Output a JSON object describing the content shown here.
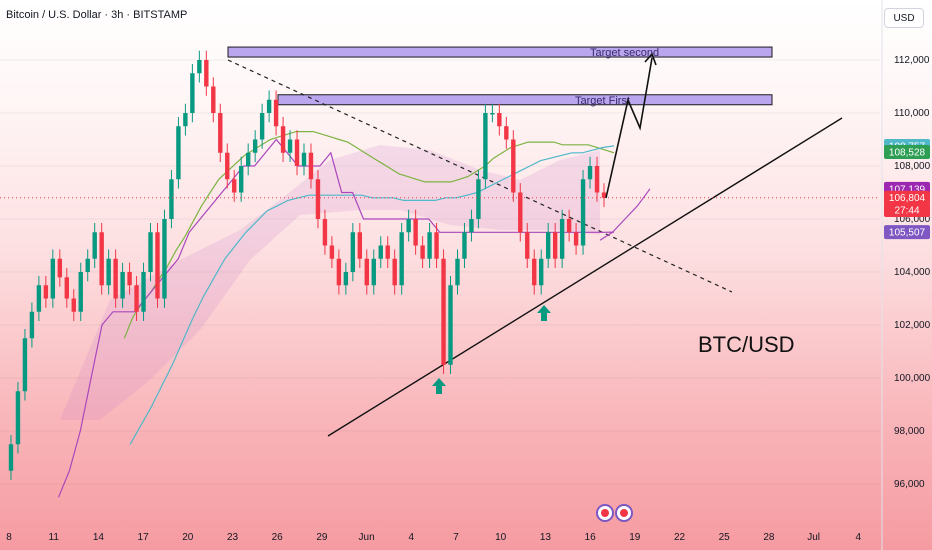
{
  "header": {
    "symbol_title": "Bitcoin / U.S. Dollar · 3h · BITSTAMP",
    "currency": "USD"
  },
  "chart_data": {
    "type": "line",
    "title": "",
    "symbol": "BTC/USD",
    "ylim": [
      94500,
      113500
    ],
    "y_ticks": [
      112000,
      110000,
      108000,
      106000,
      104000,
      102000,
      100000,
      98000,
      96000
    ],
    "y_tick_labels": [
      "112,000",
      "110,000",
      "108,000",
      "106,000",
      "104,000",
      "102,000",
      "100,000",
      "98,000",
      "96,000"
    ],
    "x_tick_labels": [
      "8",
      "11",
      "14",
      "17",
      "20",
      "23",
      "26",
      "29",
      "Jun",
      "4",
      "7",
      "10",
      "13",
      "16",
      "19",
      "22",
      "25",
      "28",
      "Jul",
      "4"
    ],
    "price_badges": [
      {
        "label": "108,757",
        "value": 108757,
        "color": "#4fb8c9"
      },
      {
        "label": "108,528",
        "value": 108528,
        "color": "#2e9e55"
      },
      {
        "label": "107,139",
        "value": 107139,
        "color": "#9c27b0"
      },
      {
        "label": "106,804",
        "value": 106804,
        "color": "#f23645"
      },
      {
        "label": "27:44",
        "value": 106350,
        "color": "#f23645"
      },
      {
        "label": "105,507",
        "value": 105507,
        "color": "#7e57c2"
      }
    ],
    "targets": [
      {
        "label": "Target second",
        "value": 112300
      },
      {
        "label": "Target First",
        "value": 110500
      }
    ],
    "series": [
      {
        "color": "#089981",
        "values": [
          96500,
          97500,
          99500,
          101500,
          102500,
          103500,
          103000,
          104500,
          103800,
          103000,
          102500,
          104000,
          104500,
          105500,
          103500,
          104500,
          103000,
          104000,
          103500,
          102500,
          104000,
          105500,
          103000,
          106000,
          107500,
          109500,
          110000,
          111500,
          112000,
          111000,
          110000,
          108500,
          107500,
          107000,
          108000,
          108500,
          109000,
          110000,
          110500,
          109500,
          108500,
          109000,
          108000,
          108500,
          107500,
          106000,
          105000,
          104500,
          103500,
          104000,
          105500,
          104500,
          103500,
          104500,
          105000,
          104500,
          103500,
          105500,
          106000,
          105000,
          104500,
          105500,
          104500,
          100500,
          103500,
          104500,
          105500,
          106000,
          107500,
          110000,
          110000,
          109500,
          109000,
          107000,
          105500,
          104500,
          103500,
          104500,
          105500,
          104500,
          106000,
          105500,
          105000,
          107500,
          108000,
          107000,
          106800
        ]
      },
      {
        "color": "#7cb342",
        "values": [
          null,
          null,
          null,
          null,
          null,
          null,
          null,
          null,
          null,
          null,
          null,
          null,
          null,
          null,
          101500,
          102300,
          102800,
          103200,
          103700,
          104200,
          104800,
          105300,
          105900,
          106500,
          107000,
          107500,
          107800,
          108100,
          108400,
          108600,
          108800,
          109000,
          109100,
          109200,
          109300,
          109300,
          109300,
          109200,
          109100,
          109000,
          108900,
          108700,
          108500,
          108300,
          108100,
          107900,
          107700,
          107600,
          107500,
          107400,
          107400,
          107400,
          107400,
          107500,
          107600,
          107800,
          108000,
          108300,
          108500,
          108700,
          108800,
          108900,
          108900,
          108900,
          108900,
          108800,
          108800,
          108800,
          108800,
          108700,
          108600,
          108500
        ]
      },
      {
        "color": "#4fb8c9",
        "values": [
          null,
          null,
          null,
          null,
          null,
          null,
          null,
          null,
          null,
          null,
          null,
          null,
          97500,
          98200,
          98900,
          99700,
          100500,
          101400,
          102300,
          103100,
          103800,
          104500,
          105000,
          105500,
          105900,
          106300,
          106500,
          106700,
          106800,
          106900,
          106900,
          106900,
          106900,
          106900,
          106900,
          106800,
          106800,
          106800,
          106700,
          106700,
          106700,
          106700,
          106800,
          106800,
          106900,
          107000,
          107200,
          107400,
          107600,
          107800,
          108000,
          108200,
          108300,
          108400,
          108500,
          108500,
          108600,
          108700,
          108757
        ]
      },
      {
        "color": "#ab47bc",
        "values": [
          null,
          null,
          null,
          null,
          null,
          95500,
          96500,
          98000,
          100000,
          102000,
          102500,
          102500,
          102500,
          103000,
          103500,
          104000,
          104500,
          105500,
          106000,
          106500,
          107000,
          107500,
          108000,
          108000,
          108500,
          109000,
          108500,
          108000,
          108000,
          108000,
          108500,
          107000,
          107000,
          106000,
          106000,
          106000,
          106000,
          106000,
          106000,
          106000,
          105500,
          105500,
          105500,
          105500,
          105500,
          105500,
          105500,
          105500,
          105500,
          105500,
          105500,
          105500,
          105500,
          105500,
          105500,
          105500,
          105507
        ]
      },
      {
        "color": "#ab47bc",
        "values": [
          null,
          null,
          null,
          null,
          null,
          null,
          null,
          null,
          null,
          null,
          null,
          null,
          null,
          null,
          null,
          null,
          null,
          null,
          null,
          null,
          null,
          null,
          null,
          null,
          null,
          null,
          null,
          null,
          null,
          null,
          null,
          null,
          null,
          null,
          null,
          null,
          null,
          null,
          null,
          null,
          null,
          null,
          null,
          null,
          null,
          null,
          null,
          null,
          null,
          null,
          null,
          null,
          null,
          null,
          null,
          null,
          null,
          null,
          null,
          null,
          null,
          null,
          null,
          null,
          null,
          null,
          null,
          null,
          null,
          null,
          null,
          null,
          null,
          null,
          null,
          null,
          null,
          null,
          null,
          null,
          105200,
          105500,
          106000,
          106500,
          107139
        ]
      }
    ]
  },
  "pair_label": "BTC/USD"
}
